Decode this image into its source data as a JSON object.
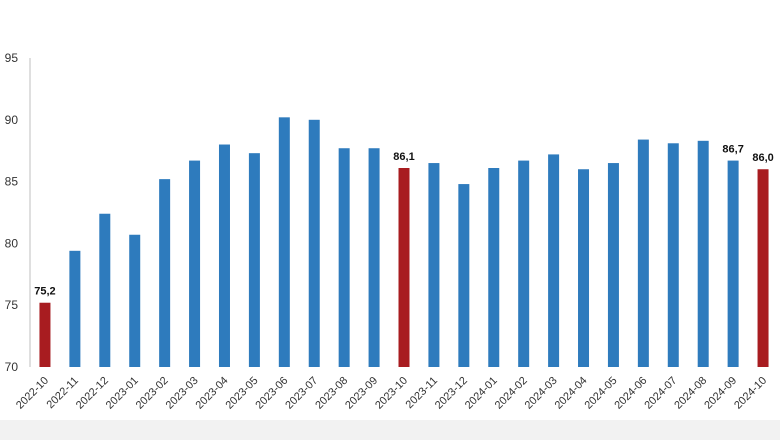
{
  "chart_data": {
    "type": "bar",
    "title": "",
    "xlabel": "",
    "ylabel": "",
    "ylim": [
      70,
      95
    ],
    "yticks": [
      70,
      75,
      80,
      85,
      90,
      95
    ],
    "grid": false,
    "legend": "none",
    "categories": [
      "2022-10",
      "2022-11",
      "2022-12",
      "2023-01",
      "2023-02",
      "2023-03",
      "2023-04",
      "2023-05",
      "2023-06",
      "2023-07",
      "2023-08",
      "2023-09",
      "2023-10",
      "2023-11",
      "2023-12",
      "2024-01",
      "2024-02",
      "2024-03",
      "2024-04",
      "2024-05",
      "2024-06",
      "2024-07",
      "2024-08",
      "2024-09",
      "2024-10"
    ],
    "values": [
      75.2,
      79.4,
      82.4,
      80.7,
      85.2,
      86.7,
      88.0,
      87.3,
      90.2,
      90.0,
      87.7,
      87.7,
      86.1,
      86.5,
      84.8,
      86.1,
      86.7,
      87.2,
      86.0,
      86.5,
      88.4,
      88.1,
      88.3,
      86.7,
      86.0
    ],
    "highlighted": [
      0,
      12,
      24
    ],
    "data_labels": [
      {
        "index": 0,
        "text": "75,2"
      },
      {
        "index": 12,
        "text": "86,1"
      },
      {
        "index": 23,
        "text": "86,7"
      },
      {
        "index": 24,
        "text": "86,0"
      }
    ],
    "colors": {
      "bar": "#2e7bbd",
      "highlight": "#a81c20",
      "axis": "#bfbfbf"
    }
  }
}
